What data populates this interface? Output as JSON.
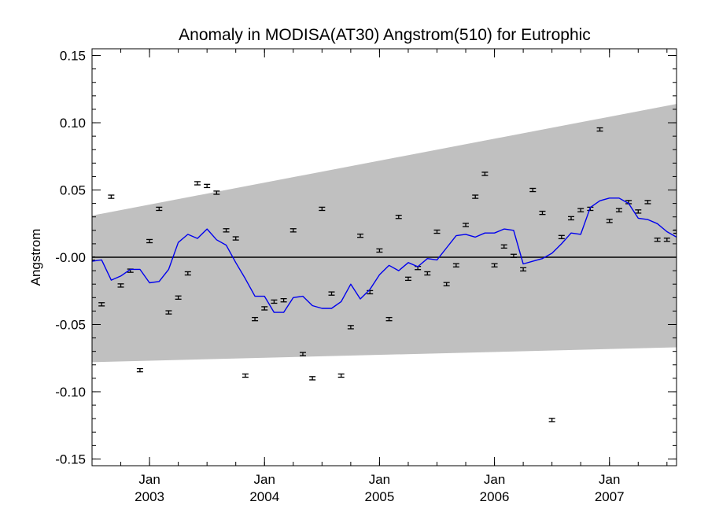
{
  "chart_data": {
    "type": "line",
    "title": "Anomaly in MODISA(AT30) Angstrom(510) for Eutrophic",
    "xlabel": "",
    "ylabel": "Angstrom",
    "x_unit": "date",
    "xlim": [
      "2002-07",
      "2007-08"
    ],
    "ylim": [
      -0.155,
      0.155
    ],
    "yticks": [
      0.15,
      0.1,
      0.05,
      0.0,
      -0.05,
      -0.1,
      -0.15
    ],
    "ytick_labels": [
      "0.15",
      "0.10",
      "0.05",
      "-0.00",
      "-0.05",
      "-0.10",
      "-0.15"
    ],
    "xticks": [
      {
        "month": "Jan",
        "year": "2003",
        "date": "2003-01"
      },
      {
        "month": "Jan",
        "year": "2004",
        "date": "2004-01"
      },
      {
        "month": "Jan",
        "year": "2005",
        "date": "2005-01"
      },
      {
        "month": "Jan",
        "year": "2006",
        "date": "2006-01"
      },
      {
        "month": "Jan",
        "year": "2007",
        "date": "2007-01"
      }
    ],
    "grid": false,
    "legend": "none",
    "zero_line": 0.0,
    "band": {
      "color": "#c0c0c0",
      "upper": [
        {
          "x": "2002-07",
          "y": 0.031
        },
        {
          "x": "2007-08",
          "y": 0.114
        }
      ],
      "lower": [
        {
          "x": "2002-07",
          "y": -0.078
        },
        {
          "x": "2007-08",
          "y": -0.067
        }
      ]
    },
    "series": [
      {
        "kind": "points_with_errorbars",
        "color": "#000000",
        "error": 0.0012,
        "points": [
          {
            "x": "2002-07",
            "y": -0.001
          },
          {
            "x": "2002-08",
            "y": -0.035
          },
          {
            "x": "2002-09",
            "y": 0.045
          },
          {
            "x": "2002-10",
            "y": -0.021
          },
          {
            "x": "2002-11",
            "y": -0.01
          },
          {
            "x": "2002-12",
            "y": -0.084
          },
          {
            "x": "2003-01",
            "y": 0.012
          },
          {
            "x": "2003-02",
            "y": 0.036
          },
          {
            "x": "2003-03",
            "y": -0.041
          },
          {
            "x": "2003-04",
            "y": -0.03
          },
          {
            "x": "2003-05",
            "y": -0.012
          },
          {
            "x": "2003-06",
            "y": 0.055
          },
          {
            "x": "2003-07",
            "y": 0.053
          },
          {
            "x": "2003-08",
            "y": 0.048
          },
          {
            "x": "2003-09",
            "y": 0.02
          },
          {
            "x": "2003-10",
            "y": 0.014
          },
          {
            "x": "2003-11",
            "y": -0.088
          },
          {
            "x": "2003-12",
            "y": -0.046
          },
          {
            "x": "2004-01",
            "y": -0.038
          },
          {
            "x": "2004-02",
            "y": -0.033
          },
          {
            "x": "2004-03",
            "y": -0.032
          },
          {
            "x": "2004-04",
            "y": 0.02
          },
          {
            "x": "2004-05",
            "y": -0.072
          },
          {
            "x": "2004-06",
            "y": -0.09
          },
          {
            "x": "2004-07",
            "y": 0.036
          },
          {
            "x": "2004-08",
            "y": -0.027
          },
          {
            "x": "2004-09",
            "y": -0.088
          },
          {
            "x": "2004-10",
            "y": -0.052
          },
          {
            "x": "2004-11",
            "y": 0.016
          },
          {
            "x": "2004-12",
            "y": -0.026
          },
          {
            "x": "2005-01",
            "y": 0.005
          },
          {
            "x": "2005-02",
            "y": -0.046
          },
          {
            "x": "2005-03",
            "y": 0.03
          },
          {
            "x": "2005-04",
            "y": -0.016
          },
          {
            "x": "2005-05",
            "y": -0.008
          },
          {
            "x": "2005-06",
            "y": -0.012
          },
          {
            "x": "2005-07",
            "y": 0.019
          },
          {
            "x": "2005-08",
            "y": -0.02
          },
          {
            "x": "2005-09",
            "y": -0.006
          },
          {
            "x": "2005-10",
            "y": 0.024
          },
          {
            "x": "2005-11",
            "y": 0.045
          },
          {
            "x": "2005-12",
            "y": 0.062
          },
          {
            "x": "2006-01",
            "y": -0.006
          },
          {
            "x": "2006-02",
            "y": 0.008
          },
          {
            "x": "2006-03",
            "y": 0.001
          },
          {
            "x": "2006-04",
            "y": -0.009
          },
          {
            "x": "2006-05",
            "y": 0.05
          },
          {
            "x": "2006-06",
            "y": 0.033
          },
          {
            "x": "2006-07",
            "y": -0.121
          },
          {
            "x": "2006-08",
            "y": 0.015
          },
          {
            "x": "2006-09",
            "y": 0.029
          },
          {
            "x": "2006-10",
            "y": 0.035
          },
          {
            "x": "2006-11",
            "y": 0.036
          },
          {
            "x": "2006-12",
            "y": 0.095
          },
          {
            "x": "2007-01",
            "y": 0.027
          },
          {
            "x": "2007-02",
            "y": 0.035
          },
          {
            "x": "2007-03",
            "y": 0.041
          },
          {
            "x": "2007-04",
            "y": 0.034
          },
          {
            "x": "2007-05",
            "y": 0.041
          },
          {
            "x": "2007-06",
            "y": 0.013
          },
          {
            "x": "2007-07",
            "y": 0.013
          },
          {
            "x": "2007-08",
            "y": 0.019
          }
        ]
      },
      {
        "kind": "line",
        "color": "#0000ee",
        "points": [
          {
            "x": "2002-07",
            "y": -0.003
          },
          {
            "x": "2002-08",
            "y": -0.002
          },
          {
            "x": "2002-09",
            "y": -0.017
          },
          {
            "x": "2002-10",
            "y": -0.014
          },
          {
            "x": "2002-11",
            "y": -0.009
          },
          {
            "x": "2002-12",
            "y": -0.009
          },
          {
            "x": "2003-01",
            "y": -0.019
          },
          {
            "x": "2003-02",
            "y": -0.018
          },
          {
            "x": "2003-03",
            "y": -0.009
          },
          {
            "x": "2003-04",
            "y": 0.011
          },
          {
            "x": "2003-05",
            "y": 0.017
          },
          {
            "x": "2003-06",
            "y": 0.014
          },
          {
            "x": "2003-07",
            "y": 0.021
          },
          {
            "x": "2003-08",
            "y": 0.013
          },
          {
            "x": "2003-09",
            "y": 0.009
          },
          {
            "x": "2003-10",
            "y": -0.004
          },
          {
            "x": "2003-11",
            "y": -0.016
          },
          {
            "x": "2003-12",
            "y": -0.029
          },
          {
            "x": "2004-01",
            "y": -0.029
          },
          {
            "x": "2004-02",
            "y": -0.041
          },
          {
            "x": "2004-03",
            "y": -0.041
          },
          {
            "x": "2004-04",
            "y": -0.03
          },
          {
            "x": "2004-05",
            "y": -0.029
          },
          {
            "x": "2004-06",
            "y": -0.036
          },
          {
            "x": "2004-07",
            "y": -0.038
          },
          {
            "x": "2004-08",
            "y": -0.038
          },
          {
            "x": "2004-09",
            "y": -0.033
          },
          {
            "x": "2004-10",
            "y": -0.02
          },
          {
            "x": "2004-11",
            "y": -0.031
          },
          {
            "x": "2004-12",
            "y": -0.024
          },
          {
            "x": "2005-01",
            "y": -0.013
          },
          {
            "x": "2005-02",
            "y": -0.006
          },
          {
            "x": "2005-03",
            "y": -0.01
          },
          {
            "x": "2005-04",
            "y": -0.004
          },
          {
            "x": "2005-05",
            "y": -0.007
          },
          {
            "x": "2005-06",
            "y": -0.001
          },
          {
            "x": "2005-07",
            "y": -0.002
          },
          {
            "x": "2005-08",
            "y": 0.007
          },
          {
            "x": "2005-09",
            "y": 0.016
          },
          {
            "x": "2005-10",
            "y": 0.017
          },
          {
            "x": "2005-11",
            "y": 0.015
          },
          {
            "x": "2005-12",
            "y": 0.018
          },
          {
            "x": "2006-01",
            "y": 0.018
          },
          {
            "x": "2006-02",
            "y": 0.021
          },
          {
            "x": "2006-03",
            "y": 0.02
          },
          {
            "x": "2006-04",
            "y": -0.005
          },
          {
            "x": "2006-05",
            "y": -0.003
          },
          {
            "x": "2006-06",
            "y": -0.001
          },
          {
            "x": "2006-07",
            "y": 0.003
          },
          {
            "x": "2006-08",
            "y": 0.01
          },
          {
            "x": "2006-09",
            "y": 0.018
          },
          {
            "x": "2006-10",
            "y": 0.017
          },
          {
            "x": "2006-11",
            "y": 0.037
          },
          {
            "x": "2006-12",
            "y": 0.042
          },
          {
            "x": "2007-01",
            "y": 0.044
          },
          {
            "x": "2007-02",
            "y": 0.044
          },
          {
            "x": "2007-03",
            "y": 0.04
          },
          {
            "x": "2007-04",
            "y": 0.029
          },
          {
            "x": "2007-05",
            "y": 0.028
          },
          {
            "x": "2007-06",
            "y": 0.025
          },
          {
            "x": "2007-07",
            "y": 0.019
          },
          {
            "x": "2007-08",
            "y": 0.015
          }
        ]
      }
    ]
  }
}
